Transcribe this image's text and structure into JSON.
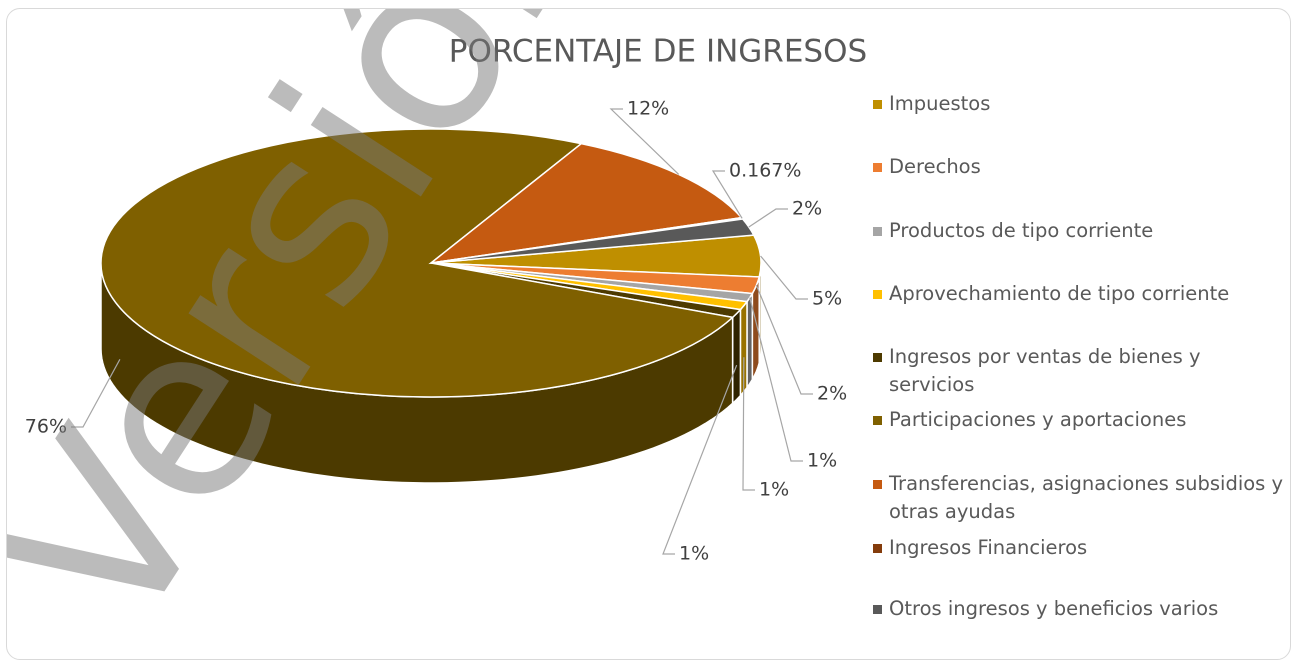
{
  "chart_data": {
    "type": "pie3d",
    "title": "PORCENTAJE DE INGRESOS",
    "watermark": "Versión",
    "categories": [
      "Impuestos",
      "Derechos",
      "Productos de tipo corriente",
      "Aprovechamiento de tipo corriente",
      "Ingresos por ventas de bienes y servicios",
      "Participaciones y aportaciones",
      "Transferencias, asignaciones subsidios y otras ayudas",
      "Ingresos Financieros",
      "Otros ingresos y beneficios varios"
    ],
    "values": [
      5,
      2,
      1,
      1,
      1,
      76,
      12,
      0.167,
      2
    ],
    "value_labels": [
      "5%",
      "2%",
      "1%",
      "1%",
      "1%",
      "76%",
      "12%",
      "0.167%",
      "2%"
    ],
    "colors": [
      "#bf8f00",
      "#ed7d31",
      "#a5a5a5",
      "#ffc000",
      "#4d3a00",
      "#7f6000",
      "#c55a11",
      "#843c0c",
      "#595959"
    ],
    "legend": "right"
  }
}
